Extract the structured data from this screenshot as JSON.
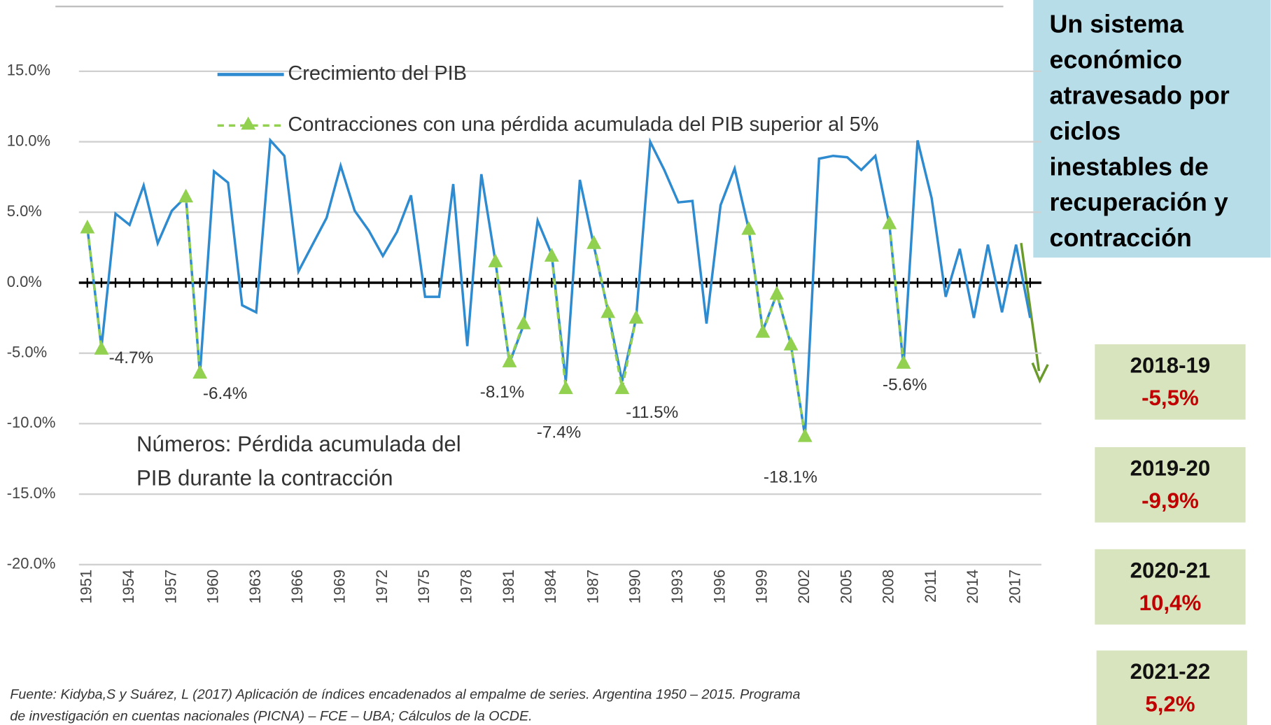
{
  "chart_data": {
    "type": "line",
    "x": [
      1951,
      1952,
      1953,
      1954,
      1955,
      1956,
      1957,
      1958,
      1959,
      1960,
      1961,
      1962,
      1963,
      1964,
      1965,
      1966,
      1967,
      1968,
      1969,
      1970,
      1971,
      1972,
      1973,
      1974,
      1975,
      1976,
      1977,
      1978,
      1979,
      1980,
      1981,
      1982,
      1983,
      1984,
      1985,
      1986,
      1987,
      1988,
      1989,
      1990,
      1991,
      1992,
      1993,
      1994,
      1995,
      1996,
      1997,
      1998,
      1999,
      2000,
      2001,
      2002,
      2003,
      2004,
      2005,
      2006,
      2007,
      2008,
      2009,
      2010,
      2011,
      2012,
      2013,
      2014,
      2015,
      2016,
      2017,
      2018
    ],
    "series": [
      {
        "name": "Crecimiento del PIB",
        "color": "#2f8bd0",
        "values": [
          3.9,
          -4.6,
          4.9,
          4.1,
          6.9,
          2.8,
          5.1,
          6.1,
          -6.5,
          7.9,
          7.1,
          -1.6,
          -2.1,
          10.1,
          9.0,
          0.8,
          2.7,
          4.6,
          8.3,
          5.1,
          3.7,
          1.9,
          3.6,
          6.2,
          -1.0,
          -1.0,
          7.0,
          -4.5,
          7.7,
          1.5,
          -5.7,
          -3.0,
          4.4,
          2.0,
          -7.0,
          7.3,
          2.6,
          -2.0,
          -7.0,
          -2.5,
          10.0,
          8.0,
          5.7,
          5.8,
          -2.9,
          5.5,
          8.1,
          3.8,
          -3.4,
          -0.8,
          -4.4,
          -10.9,
          8.8,
          9.0,
          8.9,
          8.0,
          9.0,
          4.1,
          -5.9,
          10.1,
          6.0,
          -1.0,
          2.4,
          -2.5,
          2.7,
          -2.1,
          2.7,
          -2.5
        ]
      },
      {
        "name": "Contracciones con una pérdida acumulada del PIB superior al 5%",
        "color": "#92d050",
        "values": [
          3.9,
          -4.7,
          null,
          null,
          null,
          null,
          null,
          6.1,
          -6.4,
          null,
          null,
          null,
          null,
          null,
          null,
          null,
          null,
          null,
          null,
          null,
          null,
          null,
          null,
          null,
          null,
          null,
          null,
          null,
          null,
          1.5,
          -5.6,
          -2.9,
          null,
          1.9,
          -7.5,
          null,
          2.8,
          -2.1,
          -7.5,
          -2.5,
          null,
          null,
          null,
          null,
          null,
          null,
          null,
          3.8,
          -3.5,
          -0.8,
          -4.4,
          -10.9,
          null,
          null,
          null,
          null,
          null,
          4.2,
          -5.7,
          null,
          null,
          null,
          null,
          null,
          null,
          null,
          null,
          null
        ]
      }
    ],
    "xlim": [
      1950.4,
      2018.8
    ],
    "xticks": [
      1951,
      1954,
      1957,
      1960,
      1963,
      1966,
      1969,
      1972,
      1975,
      1978,
      1981,
      1984,
      1987,
      1990,
      1993,
      1996,
      1999,
      2002,
      2005,
      2008,
      2011,
      2014,
      2017
    ],
    "ylim": [
      -20,
      15
    ],
    "yticks": [
      {
        "value": 15,
        "label": "15.0%"
      },
      {
        "value": 10,
        "label": "10.0%"
      },
      {
        "value": 5,
        "label": "5.0%"
      },
      {
        "value": 0,
        "label": "0.0%"
      },
      {
        "value": -5,
        "label": "-5.0%"
      },
      {
        "value": -10,
        "label": "-10.0%"
      },
      {
        "value": -15,
        "label": "-15.0%"
      },
      {
        "value": -20,
        "label": "-20.0%"
      }
    ],
    "grid": true,
    "annotations": [
      "-4.7%",
      "-6.4%",
      "-8.1%",
      "-7.4%",
      "-11.5%",
      "-18.1%",
      "-5.6%"
    ],
    "note": [
      "Números: Pérdida acumulada del",
      "PIB durante la contracción"
    ],
    "source": [
      "Fuente: Kidyba,S y Suárez, L (2017) Aplicación de índices encadenados al empalme de series. Argentina 1950 – 2015. Programa",
      "de investigación en cuentas nacionales (PICNA) – FCE – UBA; Cálculos de la OCDE."
    ]
  },
  "side_panel": {
    "title": [
      "Un sistema",
      "económico",
      "atravesado por",
      "ciclos",
      "inestables de",
      "recuperación y",
      "contracción"
    ],
    "boxes": [
      {
        "period": "2018-19",
        "value": "-5,5%"
      },
      {
        "period": "2019-20",
        "value": "-9,9%"
      },
      {
        "period": "2020-21",
        "value": "10,4%"
      },
      {
        "period": "2021-22",
        "value": "5,2%"
      }
    ]
  }
}
